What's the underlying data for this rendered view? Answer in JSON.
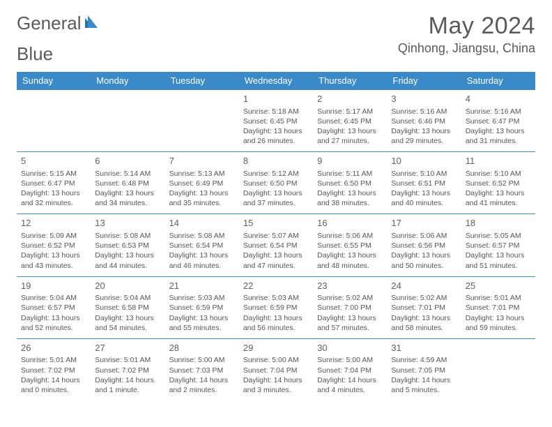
{
  "logo": {
    "text1": "General",
    "text2": "Blue"
  },
  "title": "May 2024",
  "location": "Qinhong, Jiangsu, China",
  "colors": {
    "header_bg": "#3a8ac9",
    "header_text": "#ffffff",
    "border": "#3a8ac9",
    "body_text": "#555555",
    "title_text": "#5a5a5a",
    "logo_accent": "#2f6fa8",
    "background": "#ffffff"
  },
  "weekdays": [
    "Sunday",
    "Monday",
    "Tuesday",
    "Wednesday",
    "Thursday",
    "Friday",
    "Saturday"
  ],
  "weeks": [
    [
      {
        "day": "",
        "lines": []
      },
      {
        "day": "",
        "lines": []
      },
      {
        "day": "",
        "lines": []
      },
      {
        "day": "1",
        "lines": [
          "Sunrise: 5:18 AM",
          "Sunset: 6:45 PM",
          "Daylight: 13 hours",
          "and 26 minutes."
        ]
      },
      {
        "day": "2",
        "lines": [
          "Sunrise: 5:17 AM",
          "Sunset: 6:45 PM",
          "Daylight: 13 hours",
          "and 27 minutes."
        ]
      },
      {
        "day": "3",
        "lines": [
          "Sunrise: 5:16 AM",
          "Sunset: 6:46 PM",
          "Daylight: 13 hours",
          "and 29 minutes."
        ]
      },
      {
        "day": "4",
        "lines": [
          "Sunrise: 5:16 AM",
          "Sunset: 6:47 PM",
          "Daylight: 13 hours",
          "and 31 minutes."
        ]
      }
    ],
    [
      {
        "day": "5",
        "lines": [
          "Sunrise: 5:15 AM",
          "Sunset: 6:47 PM",
          "Daylight: 13 hours",
          "and 32 minutes."
        ]
      },
      {
        "day": "6",
        "lines": [
          "Sunrise: 5:14 AM",
          "Sunset: 6:48 PM",
          "Daylight: 13 hours",
          "and 34 minutes."
        ]
      },
      {
        "day": "7",
        "lines": [
          "Sunrise: 5:13 AM",
          "Sunset: 6:49 PM",
          "Daylight: 13 hours",
          "and 35 minutes."
        ]
      },
      {
        "day": "8",
        "lines": [
          "Sunrise: 5:12 AM",
          "Sunset: 6:50 PM",
          "Daylight: 13 hours",
          "and 37 minutes."
        ]
      },
      {
        "day": "9",
        "lines": [
          "Sunrise: 5:11 AM",
          "Sunset: 6:50 PM",
          "Daylight: 13 hours",
          "and 38 minutes."
        ]
      },
      {
        "day": "10",
        "lines": [
          "Sunrise: 5:10 AM",
          "Sunset: 6:51 PM",
          "Daylight: 13 hours",
          "and 40 minutes."
        ]
      },
      {
        "day": "11",
        "lines": [
          "Sunrise: 5:10 AM",
          "Sunset: 6:52 PM",
          "Daylight: 13 hours",
          "and 41 minutes."
        ]
      }
    ],
    [
      {
        "day": "12",
        "lines": [
          "Sunrise: 5:09 AM",
          "Sunset: 6:52 PM",
          "Daylight: 13 hours",
          "and 43 minutes."
        ]
      },
      {
        "day": "13",
        "lines": [
          "Sunrise: 5:08 AM",
          "Sunset: 6:53 PM",
          "Daylight: 13 hours",
          "and 44 minutes."
        ]
      },
      {
        "day": "14",
        "lines": [
          "Sunrise: 5:08 AM",
          "Sunset: 6:54 PM",
          "Daylight: 13 hours",
          "and 46 minutes."
        ]
      },
      {
        "day": "15",
        "lines": [
          "Sunrise: 5:07 AM",
          "Sunset: 6:54 PM",
          "Daylight: 13 hours",
          "and 47 minutes."
        ]
      },
      {
        "day": "16",
        "lines": [
          "Sunrise: 5:06 AM",
          "Sunset: 6:55 PM",
          "Daylight: 13 hours",
          "and 48 minutes."
        ]
      },
      {
        "day": "17",
        "lines": [
          "Sunrise: 5:06 AM",
          "Sunset: 6:56 PM",
          "Daylight: 13 hours",
          "and 50 minutes."
        ]
      },
      {
        "day": "18",
        "lines": [
          "Sunrise: 5:05 AM",
          "Sunset: 6:57 PM",
          "Daylight: 13 hours",
          "and 51 minutes."
        ]
      }
    ],
    [
      {
        "day": "19",
        "lines": [
          "Sunrise: 5:04 AM",
          "Sunset: 6:57 PM",
          "Daylight: 13 hours",
          "and 52 minutes."
        ]
      },
      {
        "day": "20",
        "lines": [
          "Sunrise: 5:04 AM",
          "Sunset: 6:58 PM",
          "Daylight: 13 hours",
          "and 54 minutes."
        ]
      },
      {
        "day": "21",
        "lines": [
          "Sunrise: 5:03 AM",
          "Sunset: 6:59 PM",
          "Daylight: 13 hours",
          "and 55 minutes."
        ]
      },
      {
        "day": "22",
        "lines": [
          "Sunrise: 5:03 AM",
          "Sunset: 6:59 PM",
          "Daylight: 13 hours",
          "and 56 minutes."
        ]
      },
      {
        "day": "23",
        "lines": [
          "Sunrise: 5:02 AM",
          "Sunset: 7:00 PM",
          "Daylight: 13 hours",
          "and 57 minutes."
        ]
      },
      {
        "day": "24",
        "lines": [
          "Sunrise: 5:02 AM",
          "Sunset: 7:01 PM",
          "Daylight: 13 hours",
          "and 58 minutes."
        ]
      },
      {
        "day": "25",
        "lines": [
          "Sunrise: 5:01 AM",
          "Sunset: 7:01 PM",
          "Daylight: 13 hours",
          "and 59 minutes."
        ]
      }
    ],
    [
      {
        "day": "26",
        "lines": [
          "Sunrise: 5:01 AM",
          "Sunset: 7:02 PM",
          "Daylight: 14 hours",
          "and 0 minutes."
        ]
      },
      {
        "day": "27",
        "lines": [
          "Sunrise: 5:01 AM",
          "Sunset: 7:02 PM",
          "Daylight: 14 hours",
          "and 1 minute."
        ]
      },
      {
        "day": "28",
        "lines": [
          "Sunrise: 5:00 AM",
          "Sunset: 7:03 PM",
          "Daylight: 14 hours",
          "and 2 minutes."
        ]
      },
      {
        "day": "29",
        "lines": [
          "Sunrise: 5:00 AM",
          "Sunset: 7:04 PM",
          "Daylight: 14 hours",
          "and 3 minutes."
        ]
      },
      {
        "day": "30",
        "lines": [
          "Sunrise: 5:00 AM",
          "Sunset: 7:04 PM",
          "Daylight: 14 hours",
          "and 4 minutes."
        ]
      },
      {
        "day": "31",
        "lines": [
          "Sunrise: 4:59 AM",
          "Sunset: 7:05 PM",
          "Daylight: 14 hours",
          "and 5 minutes."
        ]
      },
      {
        "day": "",
        "lines": []
      }
    ]
  ]
}
